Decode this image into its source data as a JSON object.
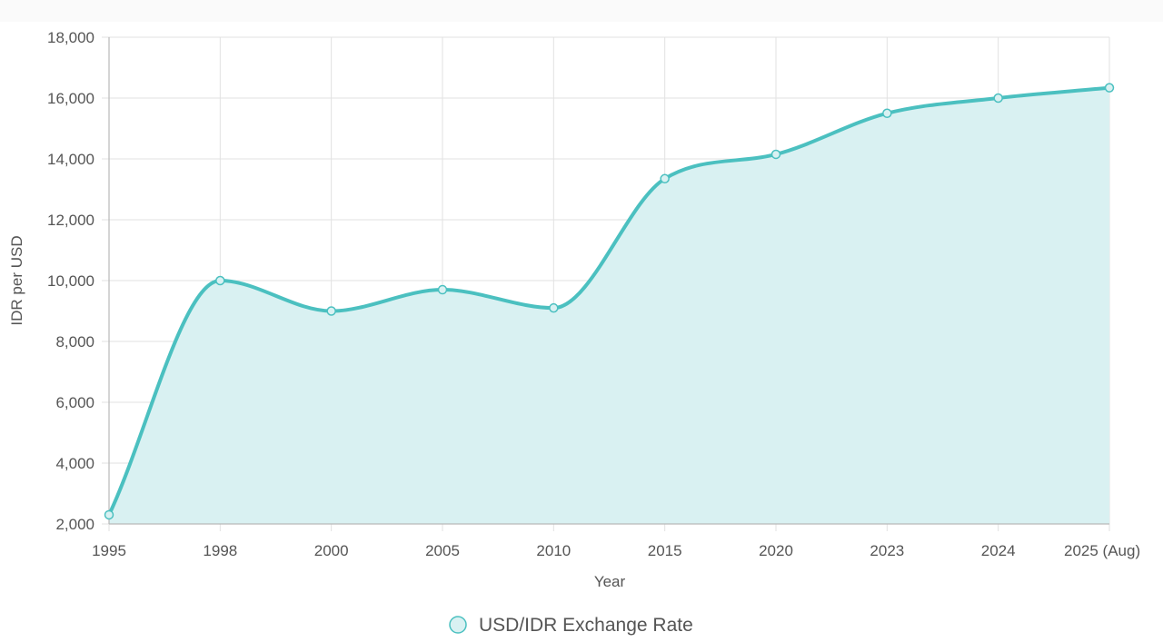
{
  "chart_data": {
    "type": "area",
    "title": "",
    "xlabel": "Year",
    "ylabel": "IDR per USD",
    "categories": [
      "1995",
      "1998",
      "2000",
      "2005",
      "2010",
      "2015",
      "2020",
      "2023",
      "2024",
      "2025 (Aug)"
    ],
    "series": [
      {
        "name": "USD/IDR Exchange Rate",
        "values": [
          2300,
          10000,
          9000,
          9700,
          9100,
          13350,
          14150,
          15500,
          16000,
          16340
        ]
      }
    ],
    "ylim": [
      2000,
      18000
    ],
    "yticks": [
      2000,
      4000,
      6000,
      8000,
      10000,
      12000,
      14000,
      16000,
      18000
    ],
    "yticks_labels": [
      "2,000",
      "4,000",
      "6,000",
      "8,000",
      "10,000",
      "12,000",
      "14,000",
      "16,000",
      "18,000"
    ],
    "grid": true,
    "legend_position": "bottom-center",
    "line_color": "#4bc0c0",
    "fill_color": "#d9f1f2"
  }
}
